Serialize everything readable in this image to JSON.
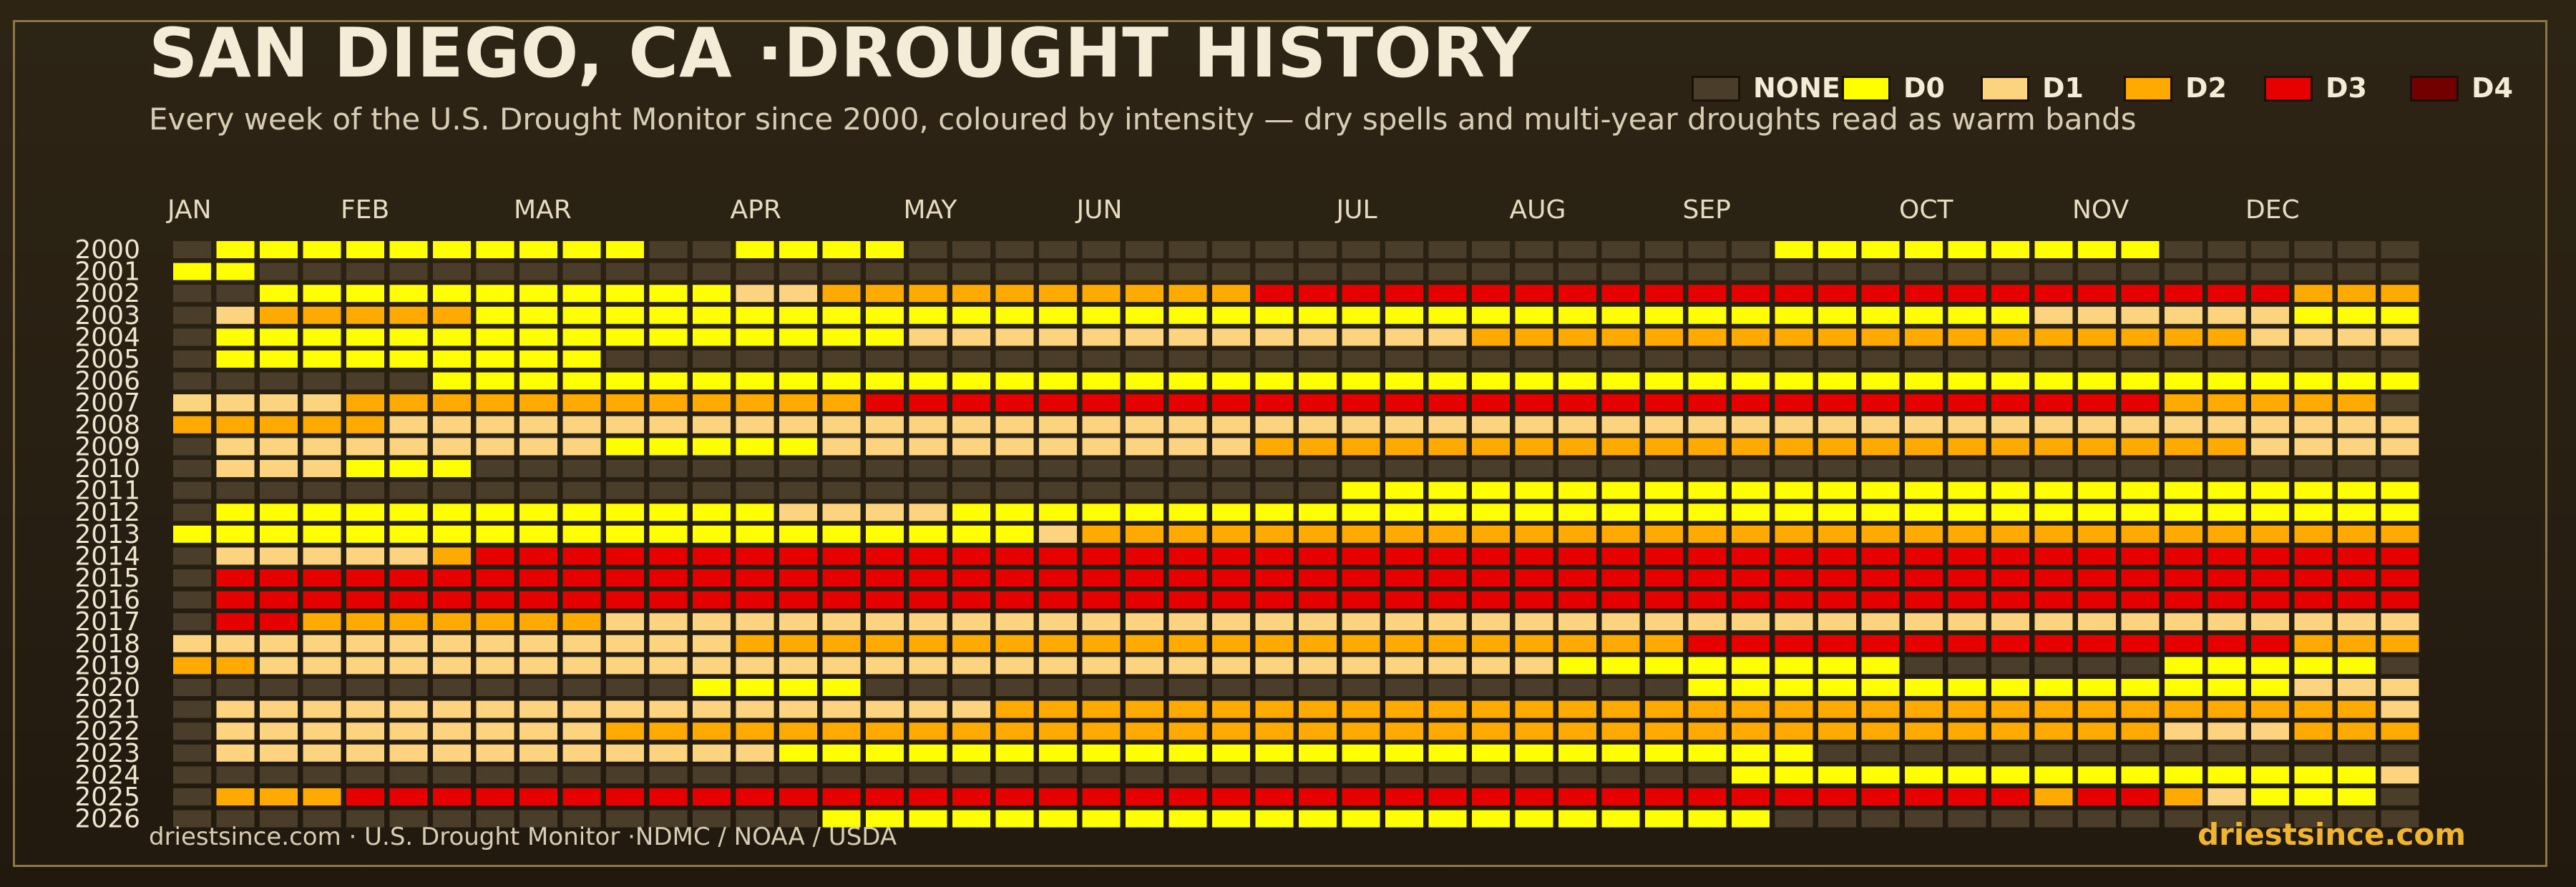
{
  "title": "SAN DIEGO, CA ·DROUGHT HISTORY",
  "subtitle": "Every week of the U.S. Drought Monitor since 2000, coloured by intensity — dry spells and multi-year droughts read as warm bands",
  "footer": {
    "source": "driestsince.com  · U.S. Drought Monitor ·NDMC / NOAA / USDA",
    "brand": "driestsince.com"
  },
  "colors": {
    "background": "#2a2113",
    "frame": "#8c7745",
    "NONE": "#4a3e2a",
    "D0": "#ffff00",
    "D1": "#fcd37f",
    "D2": "#ffaa00",
    "D3": "#e60000",
    "D4": "#730000",
    "brand": "#f0b52e"
  },
  "chart_data": {
    "type": "heatmap",
    "x_axis": "week of year",
    "y_axis": "year",
    "months": [
      "JAN",
      "FEB",
      "MAR",
      "APR",
      "MAY",
      "JUN",
      "JUL",
      "AUG",
      "SEP",
      "OCT",
      "NOV",
      "DEC"
    ],
    "month_start_week": [
      0,
      4,
      8,
      13,
      17,
      21,
      27,
      31,
      35,
      40,
      44,
      48
    ],
    "years": [
      2000,
      2001,
      2002,
      2003,
      2004,
      2005,
      2006,
      2007,
      2008,
      2009,
      2010,
      2011,
      2012,
      2013,
      2014,
      2015,
      2016,
      2017,
      2018,
      2019,
      2020,
      2021,
      2022,
      2023,
      2024,
      2025,
      2026
    ],
    "categories": [
      "NONE",
      "D0",
      "D1",
      "D2",
      "D3",
      "D4"
    ],
    "legend": {
      "items": [
        {
          "label": "NONE",
          "color": "#4a3e2a"
        },
        {
          "label": "D0",
          "color": "#ffff00"
        },
        {
          "label": "D1",
          "color": "#fcd37f"
        },
        {
          "label": "D2",
          "color": "#ffaa00"
        },
        {
          "label": "D3",
          "color": "#e60000"
        },
        {
          "label": "D4",
          "color": "#730000"
        }
      ],
      "position": "top-right"
    },
    "rows_note": "one string per year, one character per week (52 weeks): 0=NONE,1=D0,2=D1,3=D2,4=D3,5=D4",
    "rows": [
      "0111111111100111100000000000000000000111111111000000",
      "1100000000000000000000000000000000000000000000000000",
      "0011111111111223333333333444444444444444444444444333",
      "0233333111111111111111111111111111111111111222222111",
      "0111111111111111122222222222223333333333333333332222",
      "0111111111000000000000000000000000000000000000000000",
      "0000001111111111111111111111111111111111111111111111",
      "2222333333333333444444444444444444444444444444333330",
      "3333322222222222222222222222222222222222222222222222",
      "0222222222111112222222222333333333333333333333332222",
      "0222111000000000000000000000000000000000000000000000",
      "0000000000000000000000000001111111111111111111111111",
      "0111111111111122221111111111111111111111111111111111",
      "1111111111111111111123333333333333333333333333333333",
      "0222223444444444444444444444444444444444444444444444",
      "0444444444444444444444444444444444444444444444444444",
      "0444444444444444444444444444444444444444444444444444",
      "0443333333222222222222222222222222222222222222222222",
      "2222222222222333333333333333333333344444444444444333",
      "3322222222222222222222222222222211111111000000111110",
      "0000000000001111000000000000000000011111111111111222",
      "0222222222222222222333333333333333333333333333333332",
      "0222222222333333333333333333333333333333333333222333",
      "0222222222222211111111111111111111111100000000000000",
      "0000000000000000000000000000000000001111111111111112",
      "0333444444444444444444444444444444444444444344321110",
      "0000000000000001111111111111111111111000000000000000"
    ]
  }
}
